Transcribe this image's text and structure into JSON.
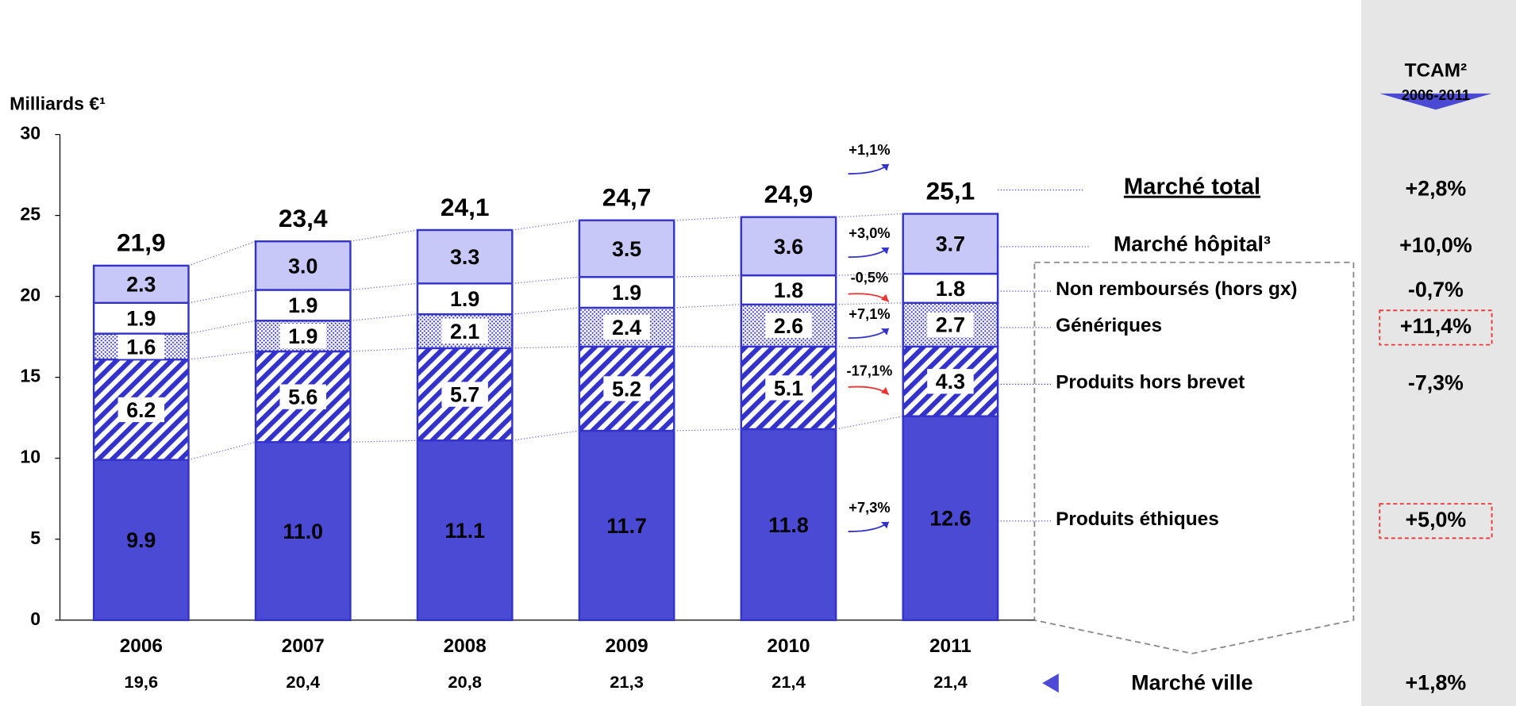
{
  "chart_data": {
    "type": "stacked_bar",
    "y_label": "Milliards €¹",
    "ylim": [
      0,
      30
    ],
    "yticks": [
      0,
      5,
      10,
      15,
      20,
      25,
      30
    ],
    "categories": [
      "2006",
      "2007",
      "2008",
      "2009",
      "2010",
      "2011"
    ],
    "series": [
      {
        "name": "Produits éthiques",
        "color": "#4a4ad4",
        "pattern": "solid",
        "values": [
          9.9,
          11.0,
          11.1,
          11.7,
          11.8,
          12.6
        ],
        "value_labels": [
          "9.9",
          "11.0",
          "11.1",
          "11.7",
          "11.8",
          "12.6"
        ],
        "change": "+7,3%",
        "change_color": "#3333cc",
        "tcam": "+5,0%",
        "highlight": true
      },
      {
        "name": "Produits hors brevet",
        "color": "#3333cc",
        "pattern": "hatch",
        "values": [
          6.2,
          5.6,
          5.7,
          5.2,
          5.1,
          4.3
        ],
        "value_labels": [
          "6.2",
          "5.6",
          "5.7",
          "5.2",
          "5.1",
          "4.3"
        ],
        "change": "-17,1%",
        "change_color": "#ee3333",
        "tcam": "-7,3%",
        "highlight": false
      },
      {
        "name": "Génériques",
        "color": "#3333cc",
        "pattern": "dots",
        "values": [
          1.6,
          1.9,
          2.1,
          2.4,
          2.6,
          2.7
        ],
        "value_labels": [
          "1.6",
          "1.9",
          "2.1",
          "2.4",
          "2.6",
          "2.7"
        ],
        "change": "+7,1%",
        "change_color": "#3333cc",
        "tcam": "+11,4%",
        "highlight": true
      },
      {
        "name": "Non remboursés (hors gx)",
        "color": "#ffffff",
        "pattern": "solid",
        "values": [
          1.9,
          1.9,
          1.9,
          1.9,
          1.8,
          1.8
        ],
        "value_labels": [
          "1.9",
          "1.9",
          "1.9",
          "1.9",
          "1.8",
          "1.8"
        ],
        "change": "-0,5%",
        "change_color": "#ee3333",
        "tcam": "-0,7%",
        "highlight": false
      },
      {
        "name": "Marché hôpital³",
        "color": "#c8c8f8",
        "pattern": "solid",
        "values": [
          2.3,
          3.0,
          3.3,
          3.5,
          3.6,
          3.7
        ],
        "value_labels": [
          "2.3",
          "3.0",
          "3.3",
          "3.5",
          "3.6",
          "3.7"
        ],
        "change": "+3,0%",
        "change_color": "#3333cc",
        "tcam": "+10,0%",
        "highlight": false
      }
    ],
    "total": {
      "name": "Marché total",
      "values": [
        21.9,
        23.4,
        24.1,
        24.7,
        24.9,
        25.1
      ],
      "value_labels": [
        "21,9",
        "23,4",
        "24,1",
        "24,7",
        "24,9",
        "25,1"
      ],
      "change": "+1,1%",
      "change_color": "#3333cc",
      "tcam": "+2,8%"
    },
    "ville": {
      "name": "Marché ville",
      "values": [
        19.6,
        20.4,
        20.8,
        21.3,
        21.4,
        21.4
      ],
      "value_labels": [
        "19,6",
        "20,4",
        "20,8",
        "21,3",
        "21,4",
        "21,4"
      ],
      "tcam": "+1,8%"
    },
    "tcam_title": "TCAM²",
    "tcam_period": "2006-2011"
  }
}
